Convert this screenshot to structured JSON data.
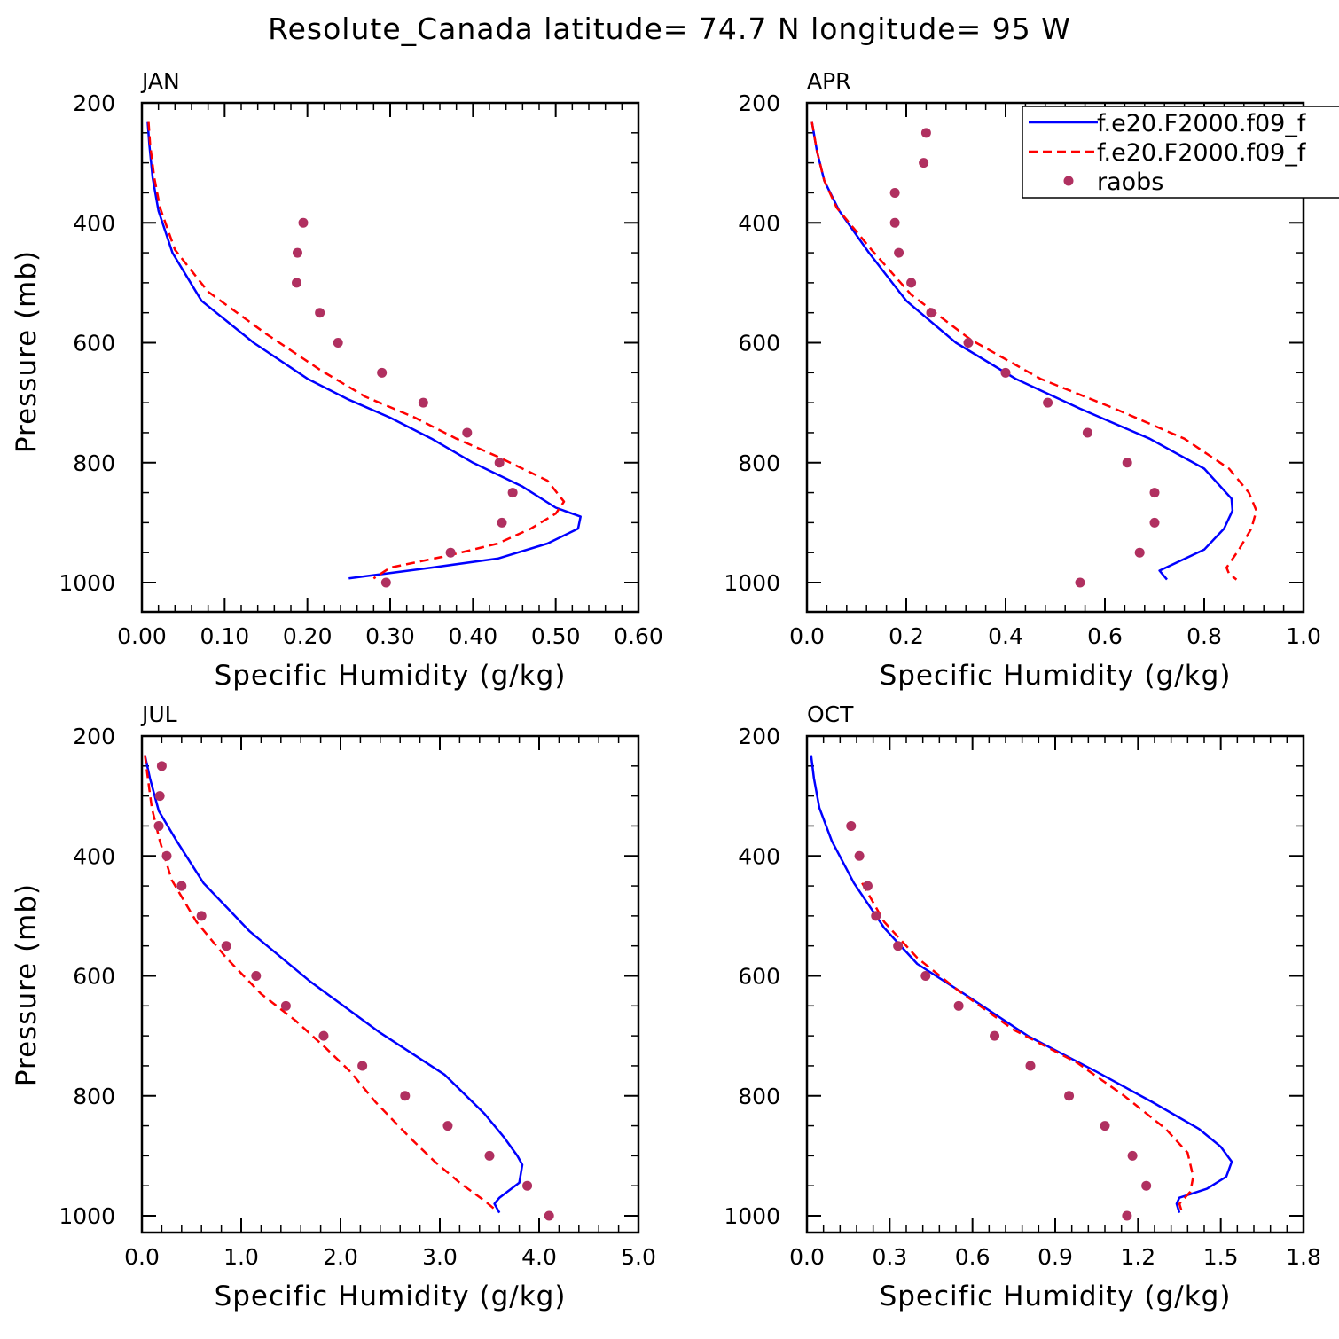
{
  "title": "Resolute_Canada  latitude= 74.7 N longitude= 95 W",
  "legend": {
    "position": "top-right",
    "entries": [
      {
        "label": "f.e20.F2000.f09_f",
        "color": "#0000ff",
        "style": "solid"
      },
      {
        "label": "f.e20.F2000.f09_f",
        "color": "#ff0000",
        "style": "dashed"
      },
      {
        "label": "raobs",
        "color": "#b03060",
        "style": "dot"
      }
    ]
  },
  "chart_data": [
    {
      "type": "line",
      "panel": "JAN",
      "xlabel": "Specific Humidity (g/kg)",
      "ylabel": "Pressure (mb)",
      "xlim": [
        0,
        0.6
      ],
      "ylim": [
        1000,
        200
      ],
      "y_inverted": true,
      "xticks": [
        "0.00",
        "0.10",
        "0.20",
        "0.30",
        "0.40",
        "0.50",
        "0.60"
      ],
      "yticks": [
        "200",
        "400",
        "600",
        "800",
        "1000"
      ],
      "series": [
        {
          "role": "model1",
          "x": [
            0.007,
            0.009,
            0.013,
            0.02,
            0.037,
            0.072,
            0.135,
            0.2,
            0.25,
            0.3,
            0.35,
            0.4,
            0.46,
            0.5,
            0.53,
            0.527,
            0.49,
            0.43,
            0.35,
            0.25
          ],
          "y": [
            232,
            270,
            325,
            380,
            450,
            530,
            600,
            660,
            695,
            725,
            760,
            800,
            840,
            875,
            890,
            910,
            935,
            960,
            975,
            993
          ]
        },
        {
          "role": "model2",
          "x": [
            0.008,
            0.01,
            0.015,
            0.022,
            0.04,
            0.08,
            0.15,
            0.215,
            0.27,
            0.33,
            0.38,
            0.43,
            0.49,
            0.51,
            0.5,
            0.47,
            0.43,
            0.37,
            0.3,
            0.28
          ],
          "y": [
            232,
            270,
            325,
            375,
            445,
            515,
            585,
            645,
            690,
            725,
            760,
            790,
            830,
            865,
            885,
            910,
            935,
            955,
            975,
            993
          ]
        },
        {
          "role": "raobs",
          "x": [
            0.195,
            0.188,
            0.187,
            0.215,
            0.237,
            0.29,
            0.34,
            0.393,
            0.432,
            0.448,
            0.435,
            0.373,
            0.295
          ],
          "y": [
            400,
            450,
            500,
            550,
            600,
            650,
            700,
            750,
            800,
            850,
            900,
            950,
            1000
          ]
        }
      ]
    },
    {
      "type": "line",
      "panel": "APR",
      "xlabel": "Specific Humidity (g/kg)",
      "ylabel": "",
      "xlim": [
        0,
        1.0
      ],
      "ylim": [
        1000,
        200
      ],
      "y_inverted": true,
      "xticks": [
        "0.0",
        "0.2",
        "0.4",
        "0.6",
        "0.8",
        "1.0"
      ],
      "yticks": [
        "200",
        "400",
        "600",
        "800",
        "1000"
      ],
      "series": [
        {
          "role": "model1",
          "x": [
            0.01,
            0.02,
            0.035,
            0.065,
            0.125,
            0.2,
            0.3,
            0.42,
            0.55,
            0.69,
            0.8,
            0.855,
            0.857,
            0.84,
            0.8,
            0.71,
            0.725
          ],
          "y": [
            232,
            280,
            330,
            380,
            450,
            530,
            600,
            660,
            710,
            760,
            810,
            860,
            880,
            910,
            945,
            980,
            995
          ]
        },
        {
          "role": "model2",
          "x": [
            0.01,
            0.02,
            0.035,
            0.06,
            0.13,
            0.21,
            0.33,
            0.47,
            0.62,
            0.76,
            0.85,
            0.89,
            0.905,
            0.895,
            0.87,
            0.845,
            0.85,
            0.865
          ],
          "y": [
            232,
            280,
            330,
            375,
            445,
            520,
            595,
            660,
            710,
            760,
            810,
            850,
            880,
            910,
            945,
            975,
            985,
            995
          ]
        },
        {
          "role": "raobs",
          "x": [
            0.24,
            0.235,
            0.177,
            0.177,
            0.185,
            0.21,
            0.25,
            0.325,
            0.4,
            0.485,
            0.565,
            0.645,
            0.7,
            0.7,
            0.67,
            0.55
          ],
          "y": [
            250,
            300,
            350,
            400,
            450,
            500,
            550,
            600,
            650,
            700,
            750,
            800,
            850,
            900,
            950,
            1000
          ]
        }
      ]
    },
    {
      "type": "line",
      "panel": "JUL",
      "xlabel": "Specific Humidity (g/kg)",
      "ylabel": "Pressure (mb)",
      "xlim": [
        0,
        5.0
      ],
      "ylim": [
        1000,
        200
      ],
      "y_inverted": true,
      "xticks": [
        "0.0",
        "1.0",
        "2.0",
        "3.0",
        "4.0",
        "5.0"
      ],
      "yticks": [
        "200",
        "400",
        "600",
        "800",
        "1000"
      ],
      "series": [
        {
          "role": "model1",
          "x": [
            0.03,
            0.08,
            0.17,
            0.35,
            0.62,
            1.08,
            1.7,
            2.4,
            3.05,
            3.45,
            3.65,
            3.78,
            3.83,
            3.8,
            3.6,
            3.55,
            3.6
          ],
          "y": [
            232,
            270,
            325,
            375,
            445,
            525,
            610,
            695,
            765,
            830,
            870,
            900,
            915,
            945,
            970,
            980,
            995
          ]
        },
        {
          "role": "model2",
          "x": [
            0.03,
            0.06,
            0.1,
            0.18,
            0.3,
            0.55,
            0.85,
            1.2,
            1.55,
            1.85,
            2.1,
            2.35,
            2.7,
            2.95,
            3.2,
            3.45,
            3.58
          ],
          "y": [
            232,
            270,
            320,
            375,
            440,
            510,
            570,
            630,
            675,
            720,
            760,
            810,
            870,
            910,
            945,
            975,
            993
          ]
        },
        {
          "role": "raobs",
          "x": [
            0.2,
            0.18,
            0.17,
            0.25,
            0.4,
            0.6,
            0.85,
            1.15,
            1.45,
            1.83,
            2.22,
            2.65,
            3.08,
            3.5,
            3.88,
            4.1
          ],
          "y": [
            250,
            300,
            350,
            400,
            450,
            500,
            550,
            600,
            650,
            700,
            750,
            800,
            850,
            900,
            950,
            1000
          ]
        }
      ]
    },
    {
      "type": "line",
      "panel": "OCT",
      "xlabel": "Specific Humidity (g/kg)",
      "ylabel": "",
      "xlim": [
        0,
        1.8
      ],
      "ylim": [
        1000,
        200
      ],
      "y_inverted": true,
      "xticks": [
        "0.0",
        "0.3",
        "0.6",
        "0.9",
        "1.2",
        "1.5",
        "1.8"
      ],
      "yticks": [
        "200",
        "400",
        "600",
        "800",
        "1000"
      ],
      "series": [
        {
          "role": "model1",
          "x": [
            0.015,
            0.025,
            0.045,
            0.09,
            0.17,
            0.28,
            0.4,
            0.57,
            0.8,
            1.05,
            1.25,
            1.42,
            1.5,
            1.54,
            1.52,
            1.45,
            1.35,
            1.34,
            1.35
          ],
          "y": [
            232,
            270,
            320,
            375,
            445,
            520,
            580,
            630,
            700,
            760,
            810,
            855,
            885,
            910,
            935,
            955,
            970,
            980,
            995
          ]
        },
        {
          "role": "model2",
          "x": [
            0.2,
            0.28,
            0.4,
            0.55,
            0.75,
            0.98,
            1.15,
            1.3,
            1.38,
            1.4,
            1.39,
            1.35,
            1.36
          ],
          "y": [
            445,
            510,
            570,
            625,
            690,
            745,
            800,
            855,
            895,
            935,
            960,
            980,
            995
          ]
        },
        {
          "role": "raobs",
          "x": [
            0.16,
            0.19,
            0.22,
            0.25,
            0.33,
            0.43,
            0.55,
            0.68,
            0.81,
            0.95,
            1.08,
            1.18,
            1.23,
            1.16
          ],
          "y": [
            350,
            400,
            450,
            500,
            550,
            600,
            650,
            700,
            750,
            800,
            850,
            900,
            950,
            1000
          ]
        }
      ]
    }
  ]
}
